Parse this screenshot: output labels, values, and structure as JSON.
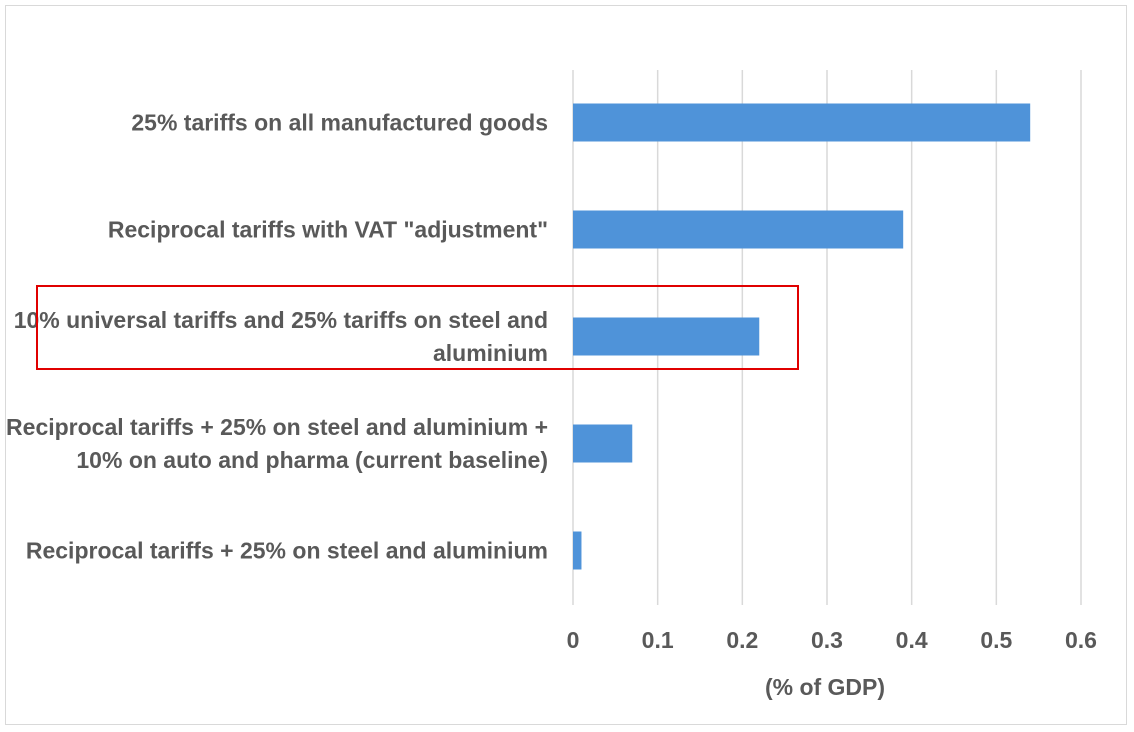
{
  "chart_data": {
    "type": "bar",
    "orientation": "horizontal",
    "categories": [
      "25% tariffs on all manufactured goods",
      "Reciprocal tariffs with VAT \"adjustment\"",
      "10% universal tariffs and 25% tariffs on steel and aluminium",
      "Reciprocal tariffs + 25%  on steel and aluminium + 10% on auto and pharma (current baseline)",
      "Reciprocal tariffs + 25%  on steel and aluminium"
    ],
    "values": [
      0.54,
      0.39,
      0.22,
      0.07,
      0.01
    ],
    "xlabel": "(% of GDP)",
    "ylabel": "",
    "xlim": [
      0,
      0.6
    ],
    "xticks": [
      "0",
      "0.1",
      "0.2",
      "0.3",
      "0.4",
      "0.5",
      "0.6"
    ],
    "grid": true,
    "bar_color": "#4f93d9",
    "highlight": {
      "category": "10% universal tariffs and 25% tariffs on steel and aluminium",
      "color": "#e00000"
    }
  }
}
